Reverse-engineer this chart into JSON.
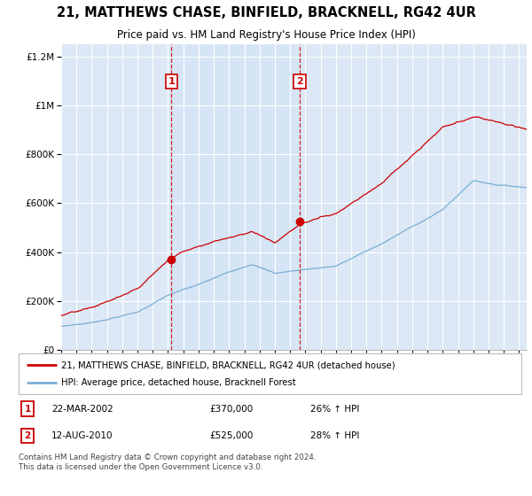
{
  "title": "21, MATTHEWS CHASE, BINFIELD, BRACKNELL, RG42 4UR",
  "subtitle": "Price paid vs. HM Land Registry's House Price Index (HPI)",
  "legend_line1": "21, MATTHEWS CHASE, BINFIELD, BRACKNELL, RG42 4UR (detached house)",
  "legend_line2": "HPI: Average price, detached house, Bracknell Forest",
  "footnote": "Contains HM Land Registry data © Crown copyright and database right 2024.\nThis data is licensed under the Open Government Licence v3.0.",
  "transaction1_label": "1",
  "transaction1_date": "22-MAR-2002",
  "transaction1_price": "£370,000",
  "transaction1_hpi": "26% ↑ HPI",
  "transaction2_label": "2",
  "transaction2_date": "12-AUG-2010",
  "transaction2_price": "£525,000",
  "transaction2_hpi": "28% ↑ HPI",
  "dashed_line1_x": 2002.22,
  "dashed_line2_x": 2010.62,
  "marker1_x": 2002.22,
  "marker1_y": 370000,
  "marker2_x": 2010.62,
  "marker2_y": 525000,
  "ylim": [
    0,
    1250000
  ],
  "xlim_start": 1995.0,
  "xlim_end": 2025.5,
  "bg_color": "#dce8f5",
  "shading_color": "#d0e4f5",
  "red_color": "#cc0000",
  "blue_color": "#7aadd4",
  "grid_color": "#ffffff"
}
